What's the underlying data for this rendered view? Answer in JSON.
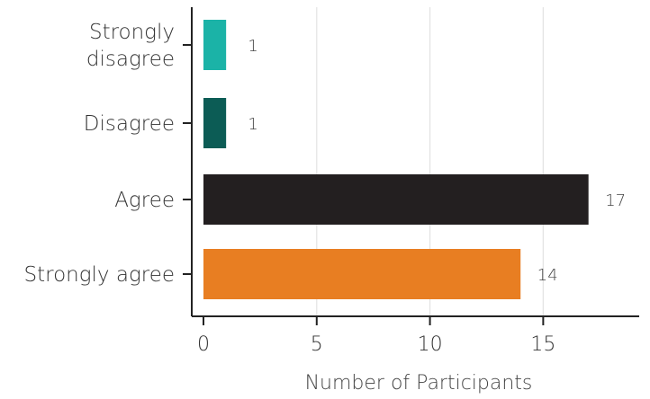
{
  "chart_data": {
    "type": "bar",
    "orientation": "horizontal",
    "categories": [
      "Strongly disagree",
      "Disagree",
      "Agree",
      "Strongly agree"
    ],
    "category_lines": [
      [
        "Strongly",
        "disagree"
      ],
      [
        "Disagree"
      ],
      [
        "Agree"
      ],
      [
        "Strongly agree"
      ]
    ],
    "values": [
      1,
      1,
      17,
      14
    ],
    "colors": [
      "#1bb3a7",
      "#0c5c55",
      "#231f20",
      "#e87e22"
    ],
    "xlabel": "Number of Participants",
    "xlim": [
      0,
      19
    ],
    "xticks": [
      0,
      5,
      10,
      15
    ],
    "grid": true
  }
}
